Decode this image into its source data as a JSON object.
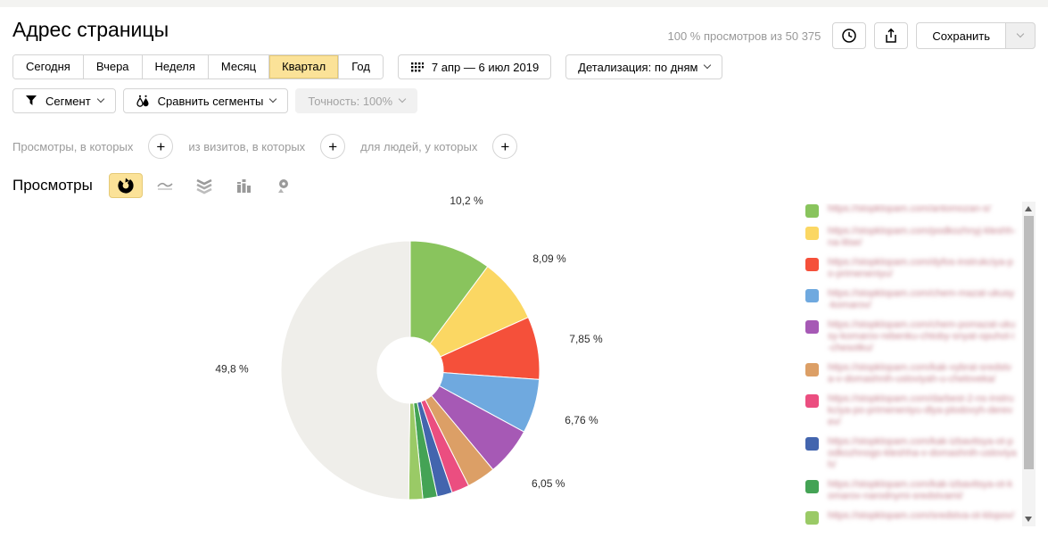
{
  "page": {
    "title": "Адрес страницы"
  },
  "header": {
    "views_caption": "100 % просмотров из 50 375",
    "save_button": "Сохранить"
  },
  "period_tabs": {
    "items": [
      {
        "label": "Сегодня",
        "selected": false
      },
      {
        "label": "Вчера",
        "selected": false
      },
      {
        "label": "Неделя",
        "selected": false
      },
      {
        "label": "Месяц",
        "selected": false
      },
      {
        "label": "Квартал",
        "selected": true
      },
      {
        "label": "Год",
        "selected": false
      }
    ]
  },
  "date_picker": {
    "range": "7 апр — 6 июл 2019"
  },
  "detailing": {
    "label": "Детализация: по дням"
  },
  "segments": {
    "segment_label": "Сегмент",
    "compare_label": "Сравнить сегменты",
    "accuracy_label": "Точность: 100%"
  },
  "filters": {
    "views_label": "Просмотры, в которых",
    "visits_label": "из визитов, в которых",
    "people_label": "для людей, у которых",
    "plus": "+"
  },
  "metric": {
    "label": "Просмотры"
  },
  "chart_types": [
    "donut",
    "line",
    "stacked-area",
    "columns",
    "map"
  ],
  "chart_data": {
    "type": "pie",
    "donut": true,
    "metric": "Просмотры",
    "unit": "%",
    "accent_selected_color": "#fbe298",
    "slices": [
      {
        "label": "10,2 %",
        "value": 10.2,
        "color": "#89c45d"
      },
      {
        "label": "8,09 %",
        "value": 8.09,
        "color": "#fbd763"
      },
      {
        "label": "7,85 %",
        "value": 7.85,
        "color": "#f5503a"
      },
      {
        "label": "6,76 %",
        "value": 6.76,
        "color": "#6fa9df"
      },
      {
        "label": "6,05 %",
        "value": 6.05,
        "color": "#a659b5"
      },
      {
        "label": null,
        "value": 3.6,
        "color": "#dc9f66"
      },
      {
        "label": null,
        "value": 2.2,
        "color": "#eb4e80"
      },
      {
        "label": null,
        "value": 1.9,
        "color": "#4365ae"
      },
      {
        "label": null,
        "value": 1.8,
        "color": "#44a355"
      },
      {
        "label": null,
        "value": 1.75,
        "color": "#9aca66"
      },
      {
        "label": "49,8 %",
        "value": 49.8,
        "color": "#efeeea"
      }
    ]
  },
  "legend": {
    "text_blurred": true,
    "items": [
      {
        "color": "#89c45d",
        "url": "https://stopklopam.com/antomozan-s/"
      },
      {
        "color": "#fbd763",
        "url": "https://stopklopam.com/podkozhnyj-kleshh-na-litse/"
      },
      {
        "color": "#f5503a",
        "url": "https://stopklopam.com/dyfos-instrukciya-po-primeneniyu/"
      },
      {
        "color": "#6fa9df",
        "url": "https://stopklopam.com/chem-mazat-ukusy-komarov/"
      },
      {
        "color": "#a659b5",
        "url": "https://stopklopam.com/chem-pomazat-ukusy-komarov-rebenku-chtoby-snyat-opuhol-i-chesotku/"
      },
      {
        "color": "#dc9f66",
        "url": "https://stopklopam.com/kak-vybrat-sredstva-v-domashnih-usloviyah-u-cheloveka/"
      },
      {
        "color": "#eb4e80",
        "url": "https://stopklopam.com/darbest-2-ns-instrukciya-po-primeneniyu-dlya-plodovyh-derevev/"
      },
      {
        "color": "#4365ae",
        "url": "https://stopklopam.com/kak-izbavitsya-ot-podkozhnogo-kleshha-v-domashnih-usloviyah/"
      },
      {
        "color": "#44a355",
        "url": "https://stopklopam.com/kak-izbavitsya-ot-komarov-narodnymi-sredstvami/"
      },
      {
        "color": "#9aca66",
        "url": "https://stopklopam.com/sredstva-ot-klopov/"
      }
    ]
  }
}
